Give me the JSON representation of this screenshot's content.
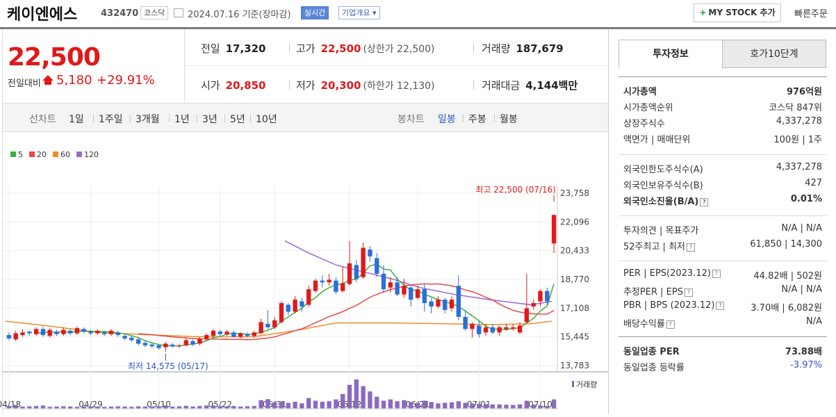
{
  "header": {
    "name": "케이엔에스",
    "code": "432470",
    "market": "코스닥",
    "date": "2024.07.16",
    "date_basis": "기준(장마감)",
    "realtime_label": "실시간",
    "company_label": "기업개요",
    "mystock_label": "MY STOCK 추가",
    "quick_order_label": "빠른주문"
  },
  "price": {
    "current": "22,500",
    "diff_label": "전일대비",
    "diff": "5,180",
    "diff_pct": "+29.91%"
  },
  "stats": {
    "prev_label": "전일",
    "prev": "17,320",
    "high_label": "고가",
    "high": "22,500",
    "upper_limit": "(상한가 22,500)",
    "volume_label": "거래량",
    "volume": "187,679",
    "open_label": "시가",
    "open": "20,850",
    "low_label": "저가",
    "low": "20,300",
    "lower_limit": "(하한가 12,130)",
    "amount_label": "거래대금",
    "amount": "4,144",
    "amount_unit": "백만"
  },
  "chart_tabs": {
    "line_label": "선차트",
    "line": [
      "1일",
      "1주일",
      "3개월",
      "1년",
      "3년",
      "5년",
      "10년"
    ],
    "candle_label": "봉차트",
    "candle": [
      "일봉",
      "주봉",
      "월봉"
    ],
    "active_candle": "일봉"
  },
  "chart_data": {
    "type": "candlestick",
    "legend": [
      "5",
      "20",
      "60",
      "120"
    ],
    "legend_colors": [
      "#3fae3f",
      "#e84848",
      "#f28b2a",
      "#9b6ad0"
    ],
    "y_ticks": [
      "23,758",
      "22,096",
      "20,433",
      "18,770",
      "17,108",
      "15,445",
      "13,783"
    ],
    "ylim": [
      13783,
      23758
    ],
    "x_labels": [
      "04/18",
      "04/29",
      "05/10",
      "05/22",
      "05/31",
      "06/12",
      "06/21",
      "07/01",
      "07/10"
    ],
    "high_note": "최고 22,500 (07/16)",
    "low_note": "최저 14,575 (05/17)",
    "volume_label": "거래량",
    "candles": [
      [
        15550,
        15350,
        15700,
        15250
      ],
      [
        15300,
        15650,
        15800,
        15200
      ],
      [
        15550,
        15700,
        15900,
        15450
      ],
      [
        15750,
        15650,
        15800,
        15500
      ],
      [
        15600,
        15900,
        16000,
        15500
      ],
      [
        15900,
        15550,
        16050,
        15450
      ],
      [
        15500,
        15850,
        15950,
        15400
      ],
      [
        15750,
        15600,
        15850,
        15500
      ],
      [
        15600,
        15850,
        16000,
        15500
      ],
      [
        15800,
        15650,
        15900,
        15550
      ],
      [
        15650,
        15950,
        16050,
        15550
      ],
      [
        15900,
        15750,
        16000,
        15650
      ],
      [
        15750,
        15650,
        15850,
        15550
      ],
      [
        15650,
        15800,
        15900,
        15550
      ],
      [
        15700,
        15600,
        15800,
        15500
      ],
      [
        15600,
        15800,
        15900,
        15500
      ],
      [
        15700,
        15550,
        15800,
        15450
      ],
      [
        15500,
        15350,
        15600,
        15250
      ],
      [
        15400,
        15250,
        15500,
        15150
      ],
      [
        15300,
        15050,
        15400,
        14950
      ],
      [
        15100,
        14950,
        15200,
        14850
      ],
      [
        15000,
        14900,
        15100,
        14800
      ],
      [
        14950,
        14800,
        15050,
        14700
      ],
      [
        14850,
        15050,
        15150,
        14575
      ],
      [
        15000,
        14900,
        15100,
        14800
      ],
      [
        14900,
        14950,
        15050,
        14800
      ],
      [
        14950,
        15250,
        15350,
        14900
      ],
      [
        15200,
        15000,
        15300,
        14900
      ],
      [
        15050,
        15350,
        15450,
        14950
      ],
      [
        15300,
        15550,
        15650,
        15200
      ],
      [
        15500,
        15800,
        15900,
        15400
      ],
      [
        15750,
        15600,
        15850,
        15500
      ],
      [
        15600,
        15750,
        15850,
        15500
      ],
      [
        15700,
        15450,
        15800,
        15400
      ],
      [
        15450,
        15650,
        15700,
        15350
      ],
      [
        15600,
        15500,
        15700,
        15400
      ],
      [
        15500,
        15700,
        15800,
        15400
      ],
      [
        15650,
        16300,
        16500,
        15600
      ],
      [
        16200,
        16000,
        17000,
        15900
      ],
      [
        16000,
        16400,
        16600,
        15900
      ],
      [
        16300,
        17400,
        17500,
        16200
      ],
      [
        17300,
        16900,
        17400,
        16700
      ],
      [
        16900,
        17600,
        17800,
        16800
      ],
      [
        17500,
        17200,
        17700,
        16900
      ],
      [
        17300,
        18200,
        18400,
        17200
      ],
      [
        18100,
        18700,
        18800,
        18000
      ],
      [
        18700,
        18600,
        19000,
        18300
      ],
      [
        18600,
        18750,
        19100,
        18400
      ],
      [
        18700,
        18050,
        18900,
        17900
      ],
      [
        18100,
        18550,
        19500,
        18000
      ],
      [
        18500,
        19700,
        21000,
        18400
      ],
      [
        19600,
        18800,
        19900,
        18600
      ],
      [
        18900,
        20600,
        20900,
        18800
      ],
      [
        20500,
        20100,
        20700,
        19800
      ],
      [
        20000,
        19100,
        20300,
        18900
      ],
      [
        19100,
        18200,
        19600,
        18000
      ],
      [
        18300,
        18600,
        18900,
        18000
      ],
      [
        18600,
        17900,
        18900,
        17800
      ],
      [
        17900,
        18400,
        18800,
        17700
      ],
      [
        18300,
        17600,
        18400,
        17200
      ],
      [
        17700,
        18200,
        18400,
        17600
      ],
      [
        18200,
        17400,
        18500,
        16900
      ],
      [
        17500,
        17200,
        17700,
        16800
      ],
      [
        17200,
        17600,
        17800,
        17100
      ],
      [
        17600,
        17000,
        17700,
        16800
      ],
      [
        17100,
        17600,
        17800,
        16900
      ],
      [
        18400,
        16600,
        19000,
        16400
      ],
      [
        16600,
        15900,
        17000,
        15800
      ],
      [
        15900,
        16200,
        16300,
        15400
      ],
      [
        16100,
        15600,
        16400,
        15400
      ],
      [
        15700,
        16000,
        16200,
        15500
      ],
      [
        16000,
        15700,
        16200,
        15600
      ],
      [
        15700,
        16000,
        16100,
        15500
      ],
      [
        15900,
        16000,
        16200,
        15800
      ],
      [
        15900,
        16000,
        16200,
        15800
      ],
      [
        15700,
        16100,
        16300,
        15600
      ],
      [
        16300,
        17100,
        19100,
        16200
      ],
      [
        17200,
        17400,
        17600,
        17000
      ],
      [
        17500,
        18100,
        18200,
        17200
      ],
      [
        18100,
        17500,
        18300,
        17300
      ],
      [
        20850,
        22500,
        22500,
        20300
      ]
    ],
    "volumes": [
      10,
      14,
      8,
      9,
      10,
      12,
      7,
      8,
      9,
      8,
      7,
      9,
      8,
      8,
      7,
      8,
      9,
      8,
      7,
      9,
      8,
      7,
      9,
      12,
      8,
      9,
      11,
      8,
      10,
      12,
      12,
      9,
      9,
      10,
      8,
      9,
      10,
      32,
      36,
      25,
      28,
      22,
      26,
      20,
      40,
      30,
      26,
      28,
      35,
      55,
      90,
      110,
      85,
      65,
      45,
      30,
      35,
      28,
      32,
      25,
      22,
      30,
      25,
      20,
      22,
      24,
      28,
      22,
      20,
      18,
      17,
      16,
      16,
      15,
      14,
      16,
      30,
      15,
      12,
      10,
      35
    ]
  },
  "right": {
    "tab_active": "투자정보",
    "tab_other": "호가10단계",
    "group1": [
      {
        "k": "시가총액",
        "v": "976억원",
        "bold": true
      },
      {
        "k": "시가총액순위",
        "v": "코스닥 847위"
      },
      {
        "k": "상장주식수",
        "v": "4,337,278"
      },
      {
        "k": "액면가 | 매매단위",
        "v": "100원 | 1주"
      }
    ],
    "group2": [
      {
        "k": "외국인한도주식수(A)",
        "v": "4,337,278"
      },
      {
        "k": "외국인보유주식수(B)",
        "v": "427"
      },
      {
        "k": "외국인소진율(B/A)",
        "v": "0.01%",
        "bold": true
      }
    ],
    "group3": [
      {
        "k": "투자의견 | 목표주가",
        "v": "N/A | N/A"
      },
      {
        "k": "52주최고 | 최저",
        "v": "61,850 | 14,300"
      }
    ],
    "group4": [
      {
        "k": "PER | EPS(2023.12)",
        "v": "44.82배 | 502원"
      },
      {
        "k": "추정PER | EPS",
        "v": "N/A | N/A"
      },
      {
        "k": "PBR | BPS (2023.12)",
        "v": "3.70배 | 6,082원"
      },
      {
        "k": "배당수익률",
        "v": "N/A"
      }
    ],
    "group5": [
      {
        "k": "동일업종 PER",
        "v": "73.88배",
        "bold": true
      },
      {
        "k": "동일업종 등락률",
        "v": "-3.97%",
        "blue": true
      }
    ]
  }
}
